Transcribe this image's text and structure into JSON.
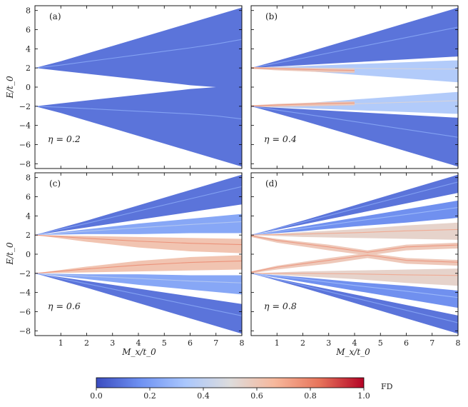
{
  "chart_data": {
    "type": "area",
    "description_axes": {
      "xlabel": "M_x/t_0",
      "ylabel": "E/t_0",
      "xlim": [
        0,
        8
      ],
      "ylim": [
        -8.5,
        8.5
      ],
      "xticks": [
        1,
        2,
        3,
        4,
        5,
        6,
        7,
        8
      ],
      "yticks": [
        -8,
        -6,
        -4,
        -2,
        0,
        2,
        4,
        6,
        8
      ]
    },
    "panels": [
      {
        "tag": "(a)",
        "eta_text": "η = 0.2",
        "eta": 0.2,
        "bands": [
          {
            "name": "upper band",
            "x": [
              0,
              1,
              2,
              3,
              4,
              5,
              6,
              7,
              8
            ],
            "upper": [
              2,
              2.7,
              3.5,
              4.3,
              5.1,
              5.9,
              6.7,
              7.5,
              8.3
            ],
            "lower": [
              2,
              1.7,
              1.4,
              1.1,
              0.8,
              0.5,
              0.2,
              0,
              0
            ],
            "fd": 0.08
          },
          {
            "name": "lower band",
            "x": [
              0,
              1,
              2,
              3,
              4,
              5,
              6,
              7,
              8
            ],
            "upper": [
              -2,
              -1.7,
              -1.4,
              -1.1,
              -0.8,
              -0.5,
              -0.2,
              0,
              0
            ],
            "lower": [
              -2,
              -2.7,
              -3.5,
              -4.3,
              -5.1,
              -5.9,
              -6.7,
              -7.5,
              -8.3
            ],
            "fd": 0.08
          }
        ]
      },
      {
        "tag": "(b)",
        "eta_text": "η = 0.4",
        "eta": 0.4,
        "bands": [
          {
            "name": "outer upper",
            "x": [
              0,
              2,
              4,
              6,
              8
            ],
            "upper": [
              2,
              3.5,
              5.1,
              6.7,
              8.3
            ],
            "lower": [
              2,
              2.3,
              2.6,
              2.9,
              3.2
            ],
            "fd": 0.08
          },
          {
            "name": "inner upper",
            "x": [
              0,
              2,
              4,
              6,
              8
            ],
            "upper": [
              2,
              2.2,
              2.4,
              2.6,
              2.8
            ],
            "lower": [
              2,
              1.7,
              1.3,
              0.9,
              0.5
            ],
            "fd": 0.35
          },
          {
            "name": "hybrid upper",
            "x": [
              0,
              1,
              2,
              3,
              4
            ],
            "upper": [
              2.1,
              2.05,
              2.0,
              1.95,
              1.9
            ],
            "lower": [
              1.9,
              1.75,
              1.65,
              1.55,
              1.5
            ],
            "fd": 0.6
          },
          {
            "name": "inner lower",
            "x": [
              0,
              2,
              4,
              6,
              8
            ],
            "upper": [
              -2,
              -1.7,
              -1.3,
              -0.9,
              -0.5
            ],
            "lower": [
              -2,
              -2.2,
              -2.4,
              -2.6,
              -2.8
            ],
            "fd": 0.35
          },
          {
            "name": "hybrid lower",
            "x": [
              0,
              1,
              2,
              3,
              4
            ],
            "upper": [
              -1.9,
              -1.75,
              -1.65,
              -1.55,
              -1.5
            ],
            "lower": [
              -2.1,
              -2.05,
              -2.0,
              -1.95,
              -1.9
            ],
            "fd": 0.6
          },
          {
            "name": "outer lower",
            "x": [
              0,
              2,
              4,
              6,
              8
            ],
            "upper": [
              -2,
              -2.3,
              -2.6,
              -2.9,
              -3.2
            ],
            "lower": [
              -2,
              -3.5,
              -5.1,
              -6.7,
              -8.3
            ],
            "fd": 0.08
          }
        ]
      },
      {
        "tag": "(c)",
        "eta_text": "η = 0.6",
        "eta": 0.6,
        "bands": [
          {
            "name": "outer upper",
            "x": [
              0,
              2,
              4,
              6,
              8
            ],
            "upper": [
              2,
              3.5,
              5.1,
              6.7,
              8.3
            ],
            "lower": [
              2,
              2.8,
              3.6,
              4.4,
              5.2
            ],
            "fd": 0.08
          },
          {
            "name": "mid upper",
            "x": [
              0,
              2,
              4,
              6,
              8
            ],
            "upper": [
              2,
              2.6,
              3.2,
              3.7,
              4.2
            ],
            "lower": [
              2,
              2.1,
              2.1,
              2.2,
              2.2
            ],
            "fd": 0.22
          },
          {
            "name": "inner upper",
            "x": [
              0,
              2,
              4,
              6,
              8
            ],
            "upper": [
              2,
              1.9,
              1.8,
              1.7,
              1.6
            ],
            "lower": [
              2,
              1.3,
              0.7,
              0.3,
              0.1
            ],
            "fd": 0.62
          },
          {
            "name": "inner lower",
            "x": [
              0,
              2,
              4,
              6,
              8
            ],
            "upper": [
              -2,
              -1.3,
              -0.7,
              -0.3,
              -0.1
            ],
            "lower": [
              -2,
              -1.9,
              -1.8,
              -1.7,
              -1.6
            ],
            "fd": 0.62
          },
          {
            "name": "mid lower",
            "x": [
              0,
              2,
              4,
              6,
              8
            ],
            "upper": [
              -2,
              -2.1,
              -2.1,
              -2.2,
              -2.2
            ],
            "lower": [
              -2,
              -2.6,
              -3.2,
              -3.7,
              -4.2
            ],
            "fd": 0.22
          },
          {
            "name": "outer lower",
            "x": [
              0,
              2,
              4,
              6,
              8
            ],
            "upper": [
              -2,
              -2.8,
              -3.6,
              -4.4,
              -5.2
            ],
            "lower": [
              -2,
              -3.5,
              -5.1,
              -6.7,
              -8.3
            ],
            "fd": 0.08
          }
        ]
      },
      {
        "tag": "(d)",
        "eta_text": "η = 0.8",
        "eta": 0.8,
        "bands": [
          {
            "name": "outer upper",
            "x": [
              0,
              2,
              4,
              6,
              8
            ],
            "upper": [
              2,
              3.5,
              5.1,
              6.7,
              8.3
            ],
            "lower": [
              2,
              3.1,
              4.2,
              5.3,
              6.4
            ],
            "fd": 0.08
          },
          {
            "name": "second upper",
            "x": [
              0,
              2,
              4,
              6,
              8
            ],
            "upper": [
              2,
              2.9,
              3.8,
              4.7,
              5.6
            ],
            "lower": [
              2,
              2.4,
              2.9,
              3.3,
              3.8
            ],
            "fd": 0.15
          },
          {
            "name": "third upper",
            "x": [
              0,
              2,
              4,
              6,
              8
            ],
            "upper": [
              2,
              2.3,
              2.6,
              3.0,
              3.3
            ],
            "lower": [
              2,
              1.8,
              1.7,
              1.6,
              1.5
            ],
            "fd": 0.55
          },
          {
            "name": "crossing upper",
            "x": [
              0,
              1,
              2,
              3,
              4,
              4.5,
              5,
              6,
              8
            ],
            "upper": [
              2,
              1.6,
              1.3,
              1.0,
              0.6,
              0.4,
              0.6,
              1.0,
              1.2
            ],
            "lower": [
              1.8,
              1.2,
              0.8,
              0.4,
              0.05,
              -0.1,
              0.05,
              0.4,
              0.6
            ],
            "fd": 0.6
          },
          {
            "name": "crossing lower",
            "x": [
              0,
              1,
              2,
              3,
              4,
              4.5,
              5,
              6,
              8
            ],
            "upper": [
              -1.8,
              -1.2,
              -0.8,
              -0.4,
              -0.05,
              0.1,
              -0.05,
              -0.4,
              -0.6
            ],
            "lower": [
              -2,
              -1.6,
              -1.3,
              -1.0,
              -0.6,
              -0.4,
              -0.6,
              -1.0,
              -1.2
            ],
            "fd": 0.6
          },
          {
            "name": "third lower",
            "x": [
              0,
              2,
              4,
              6,
              8
            ],
            "upper": [
              -2,
              -1.8,
              -1.7,
              -1.6,
              -1.5
            ],
            "lower": [
              -2,
              -2.3,
              -2.6,
              -3.0,
              -3.3
            ],
            "fd": 0.55
          },
          {
            "name": "second lower",
            "x": [
              0,
              2,
              4,
              6,
              8
            ],
            "upper": [
              -2,
              -2.4,
              -2.9,
              -3.3,
              -3.8
            ],
            "lower": [
              -2,
              -2.9,
              -3.8,
              -4.7,
              -5.6
            ],
            "fd": 0.15
          },
          {
            "name": "outer lower",
            "x": [
              0,
              2,
              4,
              6,
              8
            ],
            "upper": [
              -2,
              -3.1,
              -4.2,
              -5.3,
              -6.4
            ],
            "lower": [
              -2,
              -3.5,
              -5.1,
              -6.7,
              -8.3
            ],
            "fd": 0.08
          }
        ]
      }
    ],
    "colorbar": {
      "label": "FD",
      "range": [
        0.0,
        1.0
      ],
      "ticks": [
        "0.0",
        "0.2",
        "0.4",
        "0.6",
        "0.8",
        "1.0"
      ],
      "colormap": "coolwarm",
      "colors": [
        "#3b4cc0",
        "#6f92f3",
        "#aac7fd",
        "#dddcdc",
        "#f7b89c",
        "#e7745b",
        "#b40426"
      ]
    }
  }
}
